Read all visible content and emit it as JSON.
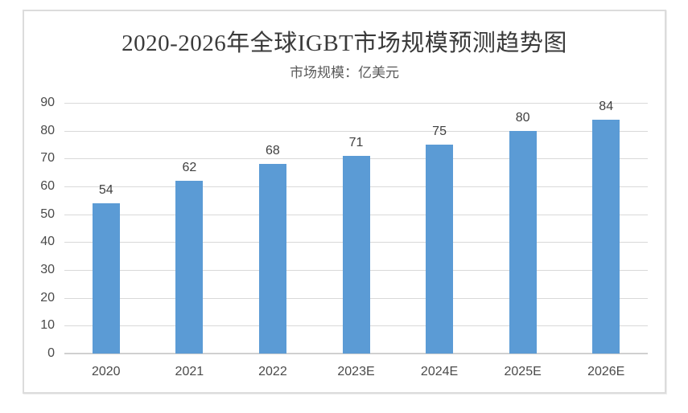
{
  "chart_data": {
    "type": "bar",
    "title": "2020-2026年全球IGBT市场规模预测趋势图",
    "subtitle": "市场规模：亿美元",
    "categories": [
      "2020",
      "2021",
      "2022",
      "2023E",
      "2024E",
      "2025E",
      "2026E"
    ],
    "values": [
      54,
      62,
      68,
      71,
      75,
      80,
      84
    ],
    "xlabel": "",
    "ylabel": "",
    "ylim": [
      0,
      90
    ],
    "ytick_step": 10,
    "grid": "horizontal",
    "legend": "none",
    "bar_color": "#5b9bd5",
    "gridline_color": "#d9d9d9",
    "axis_line_color": "#d0d0d0",
    "frame_border_color": "#dcdcdc"
  }
}
